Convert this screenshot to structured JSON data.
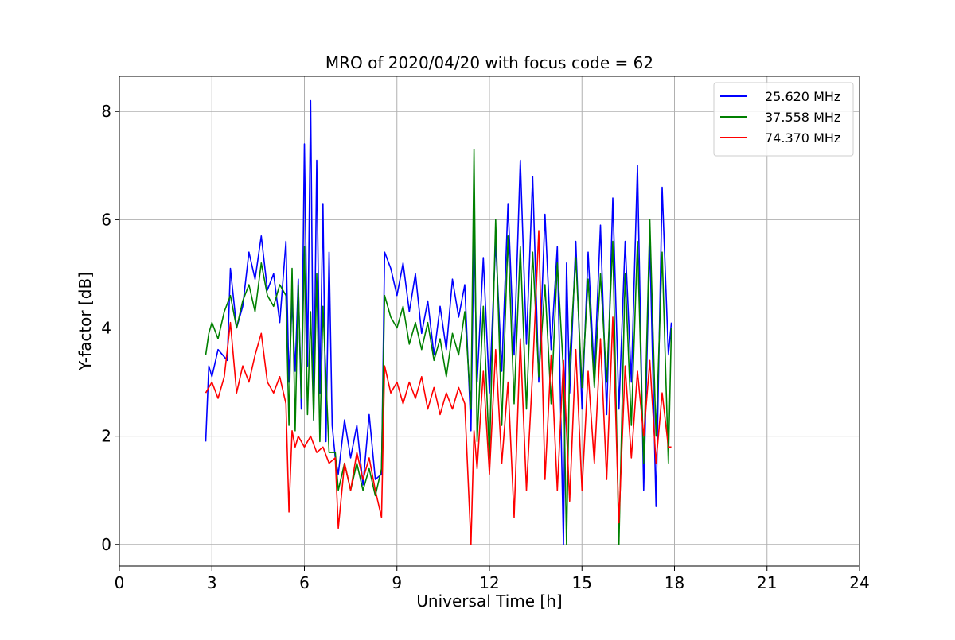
{
  "chart_data": {
    "type": "line",
    "title": "MRO of 2020/04/20 with focus code = 62",
    "xlabel": "Universal Time [h]",
    "ylabel": "Y-factor [dB]",
    "xlim": [
      0,
      24
    ],
    "ylim": [
      -0.4,
      8.65
    ],
    "xticks": [
      0,
      3,
      6,
      9,
      12,
      15,
      18,
      21,
      24
    ],
    "yticks": [
      0,
      2,
      4,
      6,
      8
    ],
    "grid": true,
    "legend_position": "top-right",
    "series": [
      {
        "name": "25.620 MHz",
        "color": "#0000ff",
        "x": [
          2.8,
          2.9,
          3.0,
          3.2,
          3.5,
          3.6,
          3.8,
          4.0,
          4.2,
          4.4,
          4.6,
          4.8,
          5.0,
          5.2,
          5.4,
          5.5,
          5.6,
          5.7,
          5.8,
          5.9,
          6.0,
          6.1,
          6.2,
          6.3,
          6.4,
          6.5,
          6.6,
          6.7,
          6.8,
          6.9,
          7.0,
          7.1,
          7.3,
          7.5,
          7.7,
          7.9,
          8.1,
          8.3,
          8.5,
          8.6,
          8.8,
          9.0,
          9.2,
          9.4,
          9.6,
          9.8,
          10.0,
          10.2,
          10.4,
          10.6,
          10.8,
          11.0,
          11.2,
          11.4,
          11.5,
          11.6,
          11.8,
          12.0,
          12.2,
          12.4,
          12.6,
          12.8,
          13.0,
          13.2,
          13.4,
          13.6,
          13.8,
          14.0,
          14.2,
          14.4,
          14.5,
          14.6,
          14.8,
          15.0,
          15.2,
          15.4,
          15.6,
          15.8,
          16.0,
          16.2,
          16.4,
          16.6,
          16.8,
          17.0,
          17.2,
          17.4,
          17.6,
          17.8,
          17.9
        ],
        "y": [
          1.9,
          3.3,
          3.1,
          3.6,
          3.4,
          5.1,
          4.0,
          4.4,
          5.4,
          4.9,
          5.7,
          4.7,
          5.0,
          4.1,
          5.6,
          3.0,
          4.5,
          3.2,
          4.9,
          2.5,
          7.4,
          3.3,
          8.2,
          2.3,
          7.1,
          2.8,
          6.3,
          1.9,
          5.4,
          2.2,
          1.6,
          1.3,
          2.3,
          1.6,
          2.2,
          1.1,
          2.4,
          1.2,
          1.3,
          5.4,
          5.1,
          4.6,
          5.2,
          4.3,
          5.0,
          3.9,
          4.5,
          3.5,
          4.4,
          3.6,
          4.9,
          4.2,
          4.8,
          2.1,
          5.9,
          3.0,
          5.3,
          2.8,
          5.6,
          3.2,
          6.3,
          3.5,
          7.1,
          3.7,
          6.8,
          3.0,
          6.1,
          3.6,
          5.5,
          0.0,
          5.2,
          2.8,
          5.6,
          2.5,
          5.4,
          3.1,
          5.9,
          2.4,
          6.4,
          2.5,
          5.6,
          3.0,
          7.0,
          1.0,
          5.6,
          0.7,
          6.6,
          3.5,
          4.1
        ]
      },
      {
        "name": "37.558 MHz",
        "color": "#008000",
        "x": [
          2.8,
          2.9,
          3.0,
          3.2,
          3.4,
          3.6,
          3.8,
          4.0,
          4.2,
          4.4,
          4.6,
          4.8,
          5.0,
          5.2,
          5.4,
          5.5,
          5.6,
          5.7,
          5.8,
          5.9,
          6.0,
          6.1,
          6.2,
          6.3,
          6.4,
          6.5,
          6.6,
          6.8,
          7.0,
          7.1,
          7.3,
          7.5,
          7.7,
          7.9,
          8.1,
          8.3,
          8.5,
          8.6,
          8.8,
          9.0,
          9.2,
          9.4,
          9.6,
          9.8,
          10.0,
          10.2,
          10.4,
          10.6,
          10.8,
          11.0,
          11.2,
          11.4,
          11.5,
          11.6,
          11.8,
          12.0,
          12.2,
          12.4,
          12.6,
          12.8,
          13.0,
          13.2,
          13.4,
          13.6,
          13.8,
          14.0,
          14.2,
          14.4,
          14.5,
          14.6,
          14.8,
          15.0,
          15.2,
          15.4,
          15.6,
          15.8,
          16.0,
          16.2,
          16.4,
          16.6,
          16.8,
          17.0,
          17.2,
          17.4,
          17.6,
          17.8,
          17.9
        ],
        "y": [
          3.5,
          3.9,
          4.1,
          3.8,
          4.3,
          4.6,
          4.0,
          4.5,
          4.8,
          4.3,
          5.2,
          4.6,
          4.4,
          4.8,
          4.6,
          2.2,
          5.1,
          2.1,
          4.8,
          2.7,
          5.5,
          2.4,
          4.3,
          2.3,
          5.0,
          1.9,
          4.4,
          1.7,
          1.7,
          1.0,
          1.5,
          1.0,
          1.5,
          1.0,
          1.4,
          0.9,
          1.4,
          4.6,
          4.2,
          4.0,
          4.4,
          3.7,
          4.1,
          3.6,
          4.1,
          3.4,
          3.8,
          3.1,
          3.9,
          3.5,
          4.3,
          2.5,
          7.3,
          1.9,
          4.4,
          1.6,
          6.0,
          2.2,
          5.7,
          2.6,
          5.5,
          2.5,
          5.4,
          3.1,
          4.8,
          2.6,
          5.2,
          3.2,
          0.0,
          3.4,
          5.3,
          2.9,
          4.9,
          2.9,
          5.0,
          3.0,
          5.6,
          0.0,
          5.0,
          2.2,
          5.6,
          1.5,
          6.0,
          2.0,
          5.4,
          1.5,
          4.0
        ]
      },
      {
        "name": "74.370 MHz",
        "color": "#ff0000",
        "x": [
          2.8,
          3.0,
          3.2,
          3.4,
          3.6,
          3.8,
          4.0,
          4.2,
          4.4,
          4.6,
          4.8,
          5.0,
          5.2,
          5.4,
          5.5,
          5.6,
          5.7,
          5.8,
          6.0,
          6.2,
          6.4,
          6.6,
          6.8,
          7.0,
          7.1,
          7.3,
          7.5,
          7.7,
          7.9,
          8.1,
          8.3,
          8.5,
          8.6,
          8.8,
          9.0,
          9.2,
          9.4,
          9.6,
          9.8,
          10.0,
          10.2,
          10.4,
          10.6,
          10.8,
          11.0,
          11.2,
          11.4,
          11.5,
          11.6,
          11.8,
          12.0,
          12.2,
          12.4,
          12.6,
          12.8,
          13.0,
          13.2,
          13.4,
          13.6,
          13.8,
          14.0,
          14.2,
          14.4,
          14.6,
          14.8,
          15.0,
          15.2,
          15.4,
          15.6,
          15.8,
          16.0,
          16.2,
          16.4,
          16.6,
          16.8,
          17.0,
          17.2,
          17.4,
          17.6,
          17.8,
          17.9
        ],
        "y": [
          2.8,
          3.0,
          2.7,
          3.1,
          4.1,
          2.8,
          3.3,
          3.0,
          3.5,
          3.9,
          3.0,
          2.8,
          3.1,
          2.6,
          0.6,
          2.1,
          1.8,
          2.0,
          1.8,
          2.0,
          1.7,
          1.8,
          1.5,
          1.6,
          0.3,
          1.5,
          1.0,
          1.7,
          1.2,
          1.6,
          1.0,
          0.5,
          3.3,
          2.8,
          3.0,
          2.6,
          3.0,
          2.7,
          3.1,
          2.5,
          2.9,
          2.4,
          2.8,
          2.5,
          2.9,
          2.6,
          0.0,
          2.1,
          1.4,
          3.2,
          1.3,
          3.6,
          1.5,
          3.0,
          0.5,
          3.8,
          1.0,
          3.2,
          5.8,
          1.2,
          3.5,
          1.0,
          3.4,
          0.8,
          3.6,
          1.0,
          3.2,
          1.5,
          3.8,
          1.2,
          4.2,
          0.4,
          3.3,
          1.6,
          3.2,
          2.0,
          3.4,
          1.5,
          2.8,
          1.8,
          1.8
        ]
      }
    ]
  }
}
